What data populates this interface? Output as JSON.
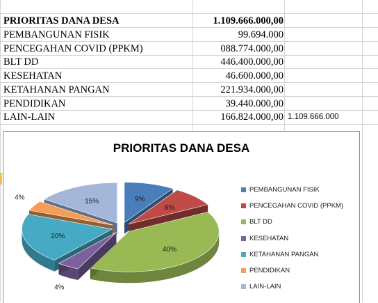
{
  "sheet": {
    "header_row": {
      "label": "PRIORITAS DANA DESA",
      "value": "1.109.666.000,00"
    },
    "rows": [
      {
        "label": "PEMBANGUNAN FISIK",
        "value": "99.694.000"
      },
      {
        "label": "PENCEGAHAN COVID (PPKM)",
        "value": "088.774.000,00"
      },
      {
        "label": "BLT DD",
        "value": "446.400.000,00"
      },
      {
        "label": "KESEHATAN",
        "value": "46.600.000,00"
      },
      {
        "label": "KETAHANAN PANGAN",
        "value": "221.934.000,00"
      },
      {
        "label": "PENDIDIKAN",
        "value": "39.440.000,00"
      },
      {
        "label": "LAIN-LAIN",
        "value": "166.824.000,00"
      }
    ],
    "extra_total": "1.109.666.000"
  },
  "chart_data": {
    "type": "pie",
    "title": "PRIORITAS DANA DESA",
    "legend_position": "right",
    "three_d": true,
    "exploded": true,
    "slices": [
      {
        "label": "PEMBANGUNAN FISIK",
        "value": 9,
        "display": "9%",
        "color": "#4a7ebb"
      },
      {
        "label": "PENCEGAHAN COVID (PPKM)",
        "value": 8,
        "display": "8%",
        "color": "#be4b48"
      },
      {
        "label": "BLT DD",
        "value": 40,
        "display": "40%",
        "color": "#98b954"
      },
      {
        "label": "KESEHATAN",
        "value": 4,
        "display": "4%",
        "color": "#7d60a0"
      },
      {
        "label": "KETAHANAN PANGAN",
        "value": 20,
        "display": "20%",
        "color": "#46aac5"
      },
      {
        "label": "PENDIDIKAN",
        "value": 4,
        "display": "4%",
        "color": "#f59d56"
      },
      {
        "label": "LAIN-LAIN",
        "value": 15,
        "display": "15%",
        "color": "#a5b6db"
      }
    ]
  }
}
